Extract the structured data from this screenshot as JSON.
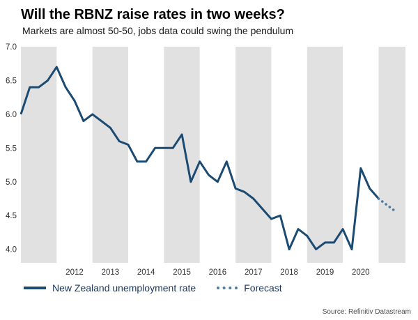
{
  "chart_data": {
    "type": "line",
    "title": "Will the RBNZ raise rates in two weeks?",
    "subtitle": "Markets are almost 50-50, jobs data could swing the pendulum",
    "xlabel": "",
    "ylabel": "",
    "ylim": [
      3.8,
      7.0
    ],
    "xlim": [
      2011.0,
      2021.75
    ],
    "yticks": [
      7.0,
      6.5,
      6.0,
      5.5,
      5.0,
      4.5,
      4.0
    ],
    "x_labels": [
      "2012",
      "2013",
      "2014",
      "2015",
      "2016",
      "2017",
      "2018",
      "2019",
      "2020"
    ],
    "shaded_years": [
      2011,
      2013,
      2015,
      2017,
      2019,
      2021
    ],
    "band_color": "#e1e1e1",
    "axis_label_color": "#333333",
    "grid": false,
    "legend_position": "bottom-left",
    "series": [
      {
        "name": "New Zealand unemployment rate",
        "style": "solid",
        "color": "#1b4a72",
        "x": [
          2011.0,
          2011.25,
          2011.5,
          2011.75,
          2012.0,
          2012.25,
          2012.5,
          2012.75,
          2013.0,
          2013.25,
          2013.5,
          2013.75,
          2014.0,
          2014.25,
          2014.5,
          2014.75,
          2015.0,
          2015.25,
          2015.5,
          2015.75,
          2016.0,
          2016.25,
          2016.5,
          2016.75,
          2017.0,
          2017.25,
          2017.5,
          2017.75,
          2018.0,
          2018.25,
          2018.5,
          2018.75,
          2019.0,
          2019.25,
          2019.5,
          2019.75,
          2020.0,
          2020.25,
          2020.5,
          2020.75,
          2021.0
        ],
        "values": [
          6.0,
          6.4,
          6.4,
          6.5,
          6.7,
          6.4,
          6.2,
          5.9,
          6.0,
          5.9,
          5.8,
          5.6,
          5.55,
          5.3,
          5.3,
          5.5,
          5.5,
          5.5,
          5.7,
          5.0,
          5.3,
          5.1,
          5.0,
          5.3,
          4.9,
          4.85,
          4.75,
          4.6,
          4.45,
          4.5,
          4.0,
          4.3,
          4.2,
          4.0,
          4.1,
          4.1,
          4.3,
          4.0,
          5.2,
          4.9,
          4.75
        ]
      },
      {
        "name": "Forecast",
        "style": "dotted",
        "color": "#4e7ca6",
        "x": [
          2021.0,
          2021.25,
          2021.5
        ],
        "values": [
          4.75,
          4.65,
          4.55
        ]
      }
    ]
  },
  "source": "Source: Refinitiv Datastream"
}
